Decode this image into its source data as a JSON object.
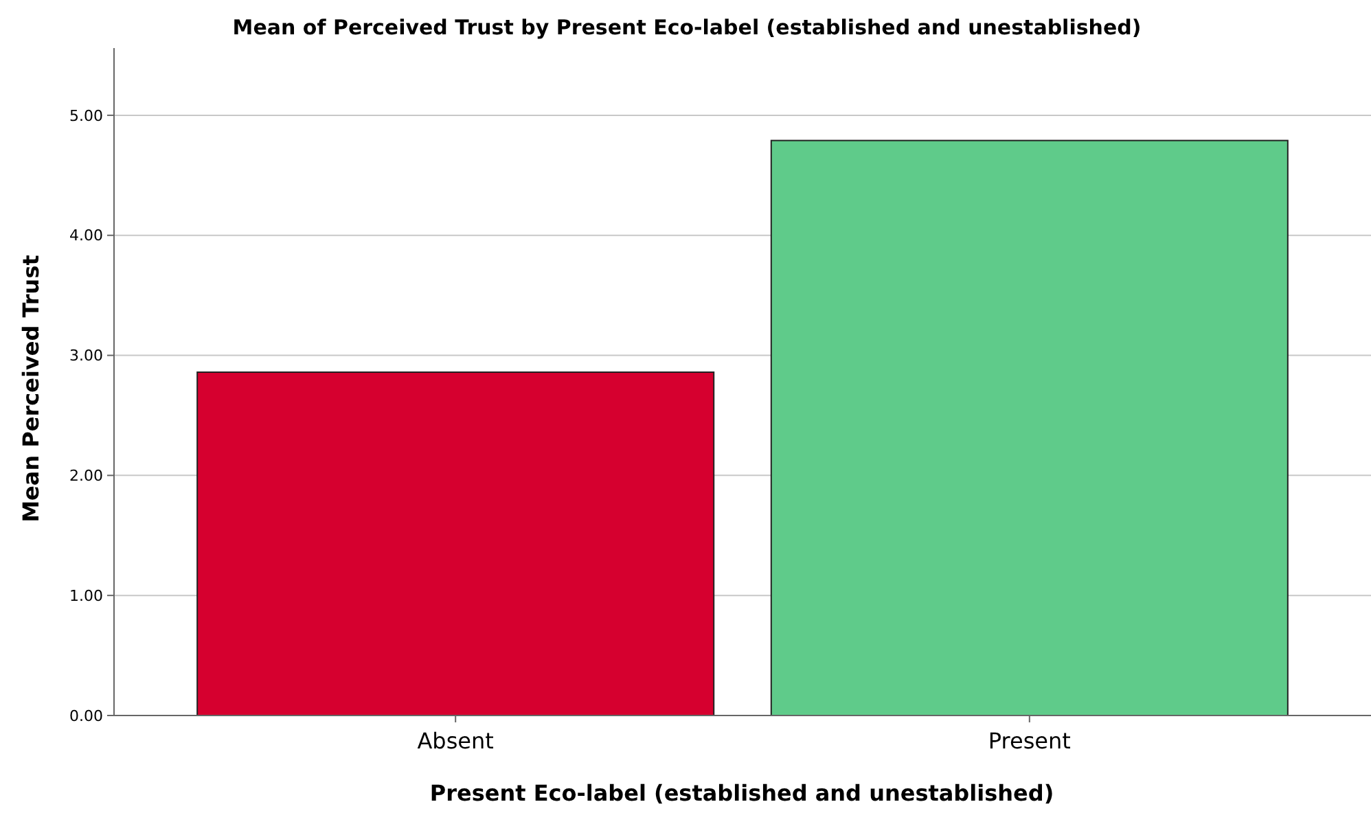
{
  "chart_data": {
    "type": "bar",
    "title": "Mean of Perceived Trust by Present Eco-label (established and unestablished)",
    "xlabel": "Present Eco-label (established and unestablished)",
    "ylabel": "Mean Perceived Trust",
    "categories": [
      "Absent",
      "Present"
    ],
    "values": [
      2.86,
      4.79
    ],
    "colors": [
      "#d6002f",
      "#5fcb8a"
    ],
    "ylim": [
      0,
      5.56
    ],
    "yticks": [
      {
        "value": 0,
        "label": "0.00"
      },
      {
        "value": 1,
        "label": "1.00"
      },
      {
        "value": 2,
        "label": "2.00"
      },
      {
        "value": 3,
        "label": "3.00"
      },
      {
        "value": 4,
        "label": "4.00"
      },
      {
        "value": 5,
        "label": "5.00"
      }
    ],
    "grid": "y"
  }
}
